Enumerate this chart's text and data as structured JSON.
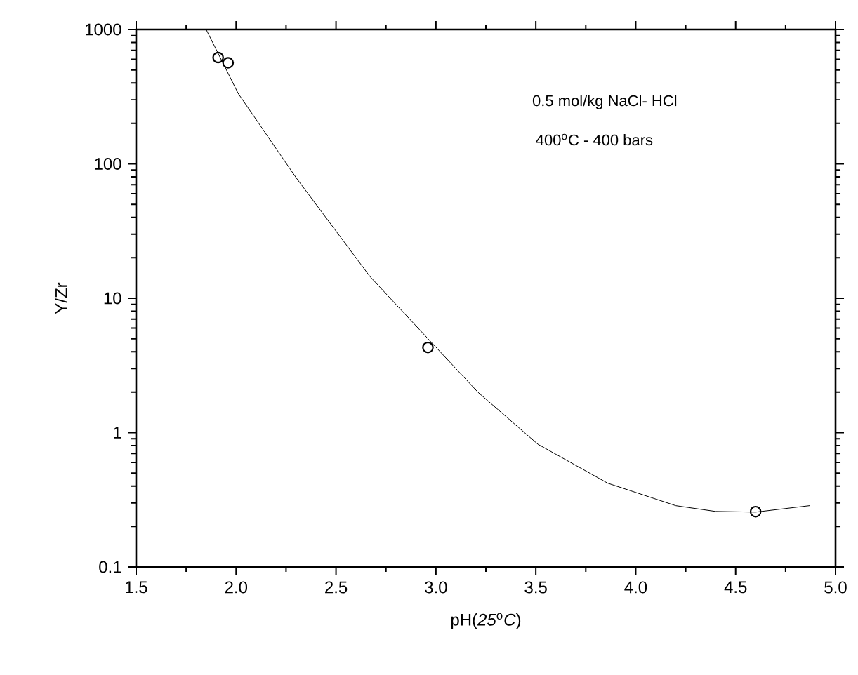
{
  "chart_data": {
    "type": "scatter",
    "xlabel": "pH(*25*$^{o}$*C*)",
    "ylabel": "Y/Zr",
    "annotations": [
      "0.5 mol/kg NaCl- HCl",
      "400$^{o}$C - 400 bars"
    ],
    "series": [
      {
        "color": "#000000",
        "marker": "circle",
        "x": [
          1.91,
          1.96,
          2.96,
          4.6
        ],
        "values": [
          618,
          565,
          4.3,
          0.258
        ]
      },
      {
        "type": "line",
        "color": "#000000",
        "marker": "none",
        "x": [
          1.85,
          2.01,
          2.3,
          2.67,
          3.21,
          3.51,
          3.86,
          4.2,
          4.4,
          4.6,
          4.87
        ],
        "values": [
          1000,
          335,
          79,
          14.5,
          2.0,
          0.82,
          0.42,
          0.286,
          0.259,
          0.256,
          0.286
        ]
      }
    ],
    "log": "y",
    "xlim": [
      1.5,
      5.0
    ],
    "ylim": [
      0.1,
      1000
    ],
    "xticks": [
      {
        "value": 1.5,
        "label": "1.5"
      },
      {
        "value": 2.0,
        "label": "2.0"
      },
      {
        "value": 2.5,
        "label": "2.5"
      },
      {
        "value": 3.0,
        "label": "3.0"
      },
      {
        "value": 3.5,
        "label": "3.5"
      },
      {
        "value": 4.0,
        "label": "4.0"
      },
      {
        "value": 4.5,
        "label": "4.5"
      },
      {
        "value": 5.0,
        "label": "5.0"
      }
    ],
    "yticks": [
      0.1,
      1,
      10,
      100,
      1000
    ]
  }
}
